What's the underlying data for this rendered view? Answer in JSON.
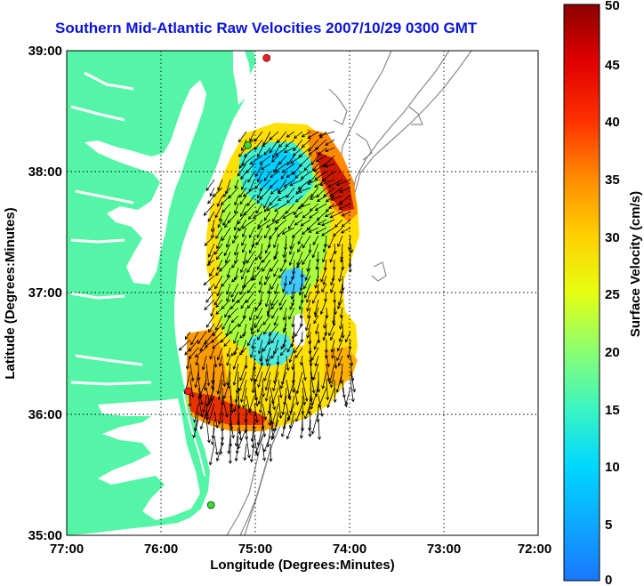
{
  "title": "Southern Mid-Atlantic Raw Velocities 2007/10/29 0300 GMT",
  "xlabel": "Longitude (Degrees:Minutes)",
  "ylabel": "Latitude (Degrees:Minutes)",
  "x_ticks": [
    "77:00",
    "76:00",
    "75:00",
    "74:00",
    "73:00",
    "72:00"
  ],
  "y_ticks": [
    "39:00",
    "38:00",
    "37:00",
    "36:00",
    "35:00"
  ],
  "colorbar": {
    "label": "Surface Velocity (cm/s)",
    "ticks": [
      "50",
      "45",
      "40",
      "35",
      "30",
      "25",
      "20",
      "15",
      "10",
      "5",
      "0"
    ],
    "min": 0,
    "max": 50
  },
  "colors": {
    "land": "#55f5a8",
    "water": "#ffffff",
    "title": "#0a14d8",
    "isobath": "#8a8a8a",
    "station_red": "#ff1a1a",
    "station_green": "#33dd33"
  },
  "map": {
    "lon_range": [
      -77,
      -72
    ],
    "lat_range": [
      35,
      39
    ],
    "stations": [
      {
        "lon": -74.88,
        "lat": 38.94,
        "color": "red"
      },
      {
        "lon": -75.08,
        "lat": 38.22,
        "color": "green"
      },
      {
        "lon": -75.71,
        "lat": 36.19,
        "color": "red"
      },
      {
        "lon": -75.47,
        "lat": 35.25,
        "color": "green"
      }
    ]
  }
}
